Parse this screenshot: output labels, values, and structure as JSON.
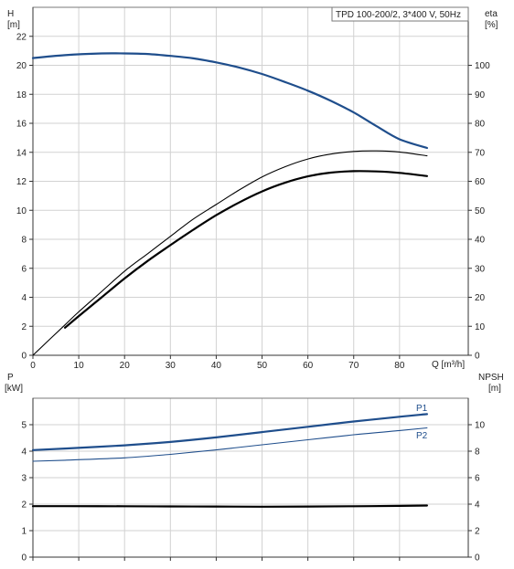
{
  "chart_data": [
    {
      "type": "line",
      "title": "TPD 100-200/2, 3*400 V, 50Hz",
      "xlabel": "Q [m³/h]",
      "xlim": [
        0,
        95
      ],
      "x_ticks": [
        "0",
        "10",
        "20",
        "30",
        "40",
        "50",
        "60",
        "70",
        "80"
      ],
      "y_axes": {
        "left": {
          "label_top": "H",
          "label_unit": "[m]",
          "lim": [
            0,
            24
          ],
          "ticks": [
            "0",
            "2",
            "4",
            "6",
            "8",
            "10",
            "12",
            "14",
            "16",
            "18",
            "20",
            "22"
          ]
        },
        "right": {
          "label_top": "eta",
          "label_unit": "[%]",
          "lim": [
            0,
            120
          ],
          "ticks": [
            "0",
            "10",
            "20",
            "30",
            "40",
            "50",
            "60",
            "70",
            "80",
            "90",
            "100"
          ]
        }
      },
      "grid": true,
      "series": [
        {
          "key": "H",
          "axis": "left",
          "color": "#1f4e8c",
          "width": 2.2,
          "x": [
            0,
            7,
            15,
            20,
            25,
            30,
            35,
            40,
            45,
            50,
            55,
            60,
            65,
            70,
            75,
            80,
            86
          ],
          "y": [
            20.5,
            20.7,
            20.82,
            20.82,
            20.78,
            20.65,
            20.48,
            20.2,
            19.85,
            19.4,
            18.85,
            18.25,
            17.55,
            16.75,
            15.8,
            14.9,
            14.3
          ]
        },
        {
          "key": "eta",
          "axis": "right",
          "color": "#000000",
          "width": 1.1,
          "x": [
            0,
            7,
            10,
            15,
            20,
            25,
            30,
            35,
            40,
            45,
            50,
            55,
            60,
            65,
            70,
            75,
            80,
            86
          ],
          "y": [
            0,
            10.5,
            15,
            22,
            29,
            35,
            41,
            47,
            52,
            57,
            61.5,
            65,
            67.7,
            69.4,
            70.3,
            70.5,
            70.1,
            68.8
          ]
        },
        {
          "key": "eta_p",
          "axis": "right",
          "color": "#000000",
          "width": 2.2,
          "x": [
            7,
            10,
            15,
            20,
            25,
            30,
            35,
            40,
            45,
            50,
            55,
            60,
            65,
            70,
            75,
            80,
            86
          ],
          "y": [
            9.5,
            13.5,
            20,
            26.5,
            32.5,
            38,
            43.3,
            48.3,
            52.7,
            56.5,
            59.5,
            61.7,
            63,
            63.5,
            63.4,
            62.9,
            61.8
          ]
        }
      ]
    },
    {
      "type": "line",
      "xlim": [
        0,
        95
      ],
      "y_axes": {
        "left": {
          "label_top": "P",
          "label_unit": "[kW]",
          "lim": [
            0,
            6
          ],
          "ticks": [
            "0",
            "1",
            "2",
            "3",
            "4",
            "5"
          ]
        },
        "right": {
          "label_top": "NPSH",
          "label_unit": "[m]",
          "lim": [
            0,
            12
          ],
          "ticks": [
            "0",
            "2",
            "4",
            "6",
            "8",
            "10"
          ]
        }
      },
      "grid": true,
      "series": [
        {
          "key": "P1",
          "name": "P1",
          "axis": "left",
          "color": "#1f4e8c",
          "width": 2.2,
          "x": [
            0,
            7,
            20,
            30,
            40,
            50,
            60,
            70,
            80,
            86
          ],
          "y": [
            4.04,
            4.1,
            4.22,
            4.35,
            4.52,
            4.72,
            4.92,
            5.12,
            5.3,
            5.4
          ]
        },
        {
          "key": "P2",
          "name": "P2",
          "axis": "left",
          "color": "#1f4e8c",
          "width": 1.1,
          "x": [
            0,
            7,
            20,
            30,
            40,
            50,
            60,
            70,
            80,
            86
          ],
          "y": [
            3.62,
            3.66,
            3.75,
            3.88,
            4.05,
            4.24,
            4.43,
            4.62,
            4.78,
            4.88
          ]
        },
        {
          "key": "NPSH",
          "axis": "right",
          "color": "#000000",
          "width": 2.2,
          "x": [
            0,
            7,
            20,
            30,
            40,
            50,
            60,
            70,
            80,
            86
          ],
          "y": [
            3.85,
            3.85,
            3.84,
            3.83,
            3.82,
            3.81,
            3.82,
            3.84,
            3.87,
            3.9
          ]
        }
      ]
    }
  ]
}
